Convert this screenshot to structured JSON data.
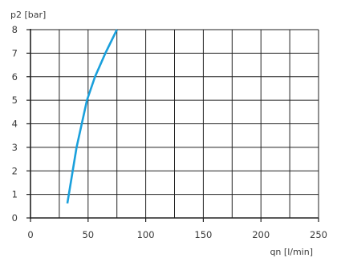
{
  "chart_data": {
    "type": "line",
    "title": "",
    "xlabel": "qn [l/min]",
    "ylabel": "p2 [bar]",
    "xlim": [
      0,
      250
    ],
    "ylim": [
      0,
      8
    ],
    "x_ticks": [
      0,
      50,
      100,
      150,
      200,
      250
    ],
    "y_ticks": [
      0,
      1,
      2,
      3,
      4,
      5,
      6,
      7,
      8
    ],
    "x_tick_labels": [
      "0",
      "50",
      "100",
      "150",
      "200",
      "250"
    ],
    "y_tick_labels": [
      "0",
      "1",
      "2",
      "3",
      "4",
      "5",
      "6",
      "7",
      "8"
    ],
    "grid": true,
    "colors": {
      "line": "#1aa0dc",
      "grid": "#222222",
      "axis": "#222222"
    },
    "series": [
      {
        "x": [
          32,
          40,
          49,
          56,
          65,
          75
        ],
        "y": [
          0.62,
          3.0,
          5.0,
          6.0,
          7.0,
          8.0
        ]
      }
    ]
  }
}
